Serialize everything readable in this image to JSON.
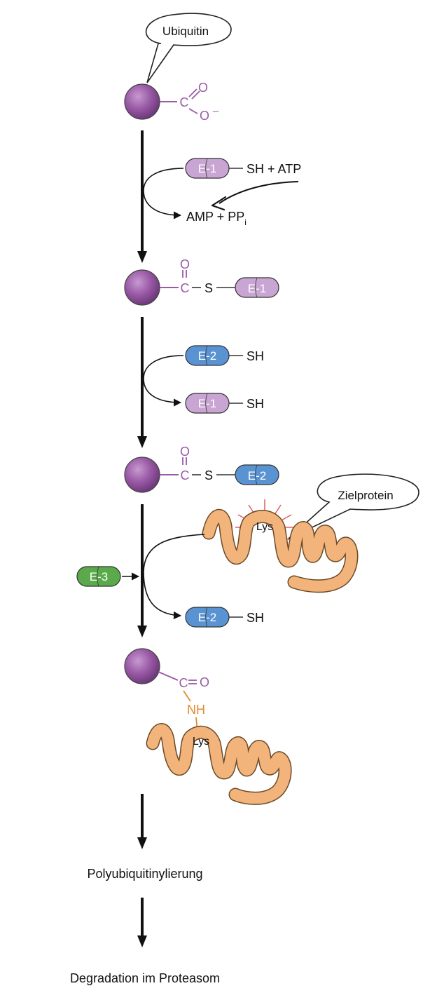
{
  "colors": {
    "ubiquitin": "#9a5aa6",
    "chem_purple": "#9a5aa6",
    "e1": "#c9a5d3",
    "e2": "#5a93d2",
    "e3": "#5aa94b",
    "protein": "#f2b47a",
    "nh": "#e08a2e",
    "glow": "#e05a6a",
    "arrow": "#111111"
  },
  "icons": {
    "ubiquitin": "purple-sphere",
    "enzyme": "double-lobed-oval",
    "protein": "coiled-strand"
  },
  "labels": {
    "ubiquitin_bubble": "Ubiquitin",
    "target_bubble": "Zielprotein",
    "polyubiquitination": "Polyubiquitinylierung",
    "degradation": "Degradation im Proteasom"
  },
  "chem": {
    "carbon": "C",
    "oxygen": "O",
    "oxyanion": "O",
    "minus": "–",
    "sulfur": "S",
    "nh": "NH",
    "lys": "Lys",
    "sh": "SH",
    "sh_atp": "SH + ATP",
    "amp_ppi": "AMP + PP",
    "pp_subscript": "i"
  },
  "enzymes": {
    "e1": "E-1",
    "e2": "E-2",
    "e3": "E-3"
  }
}
